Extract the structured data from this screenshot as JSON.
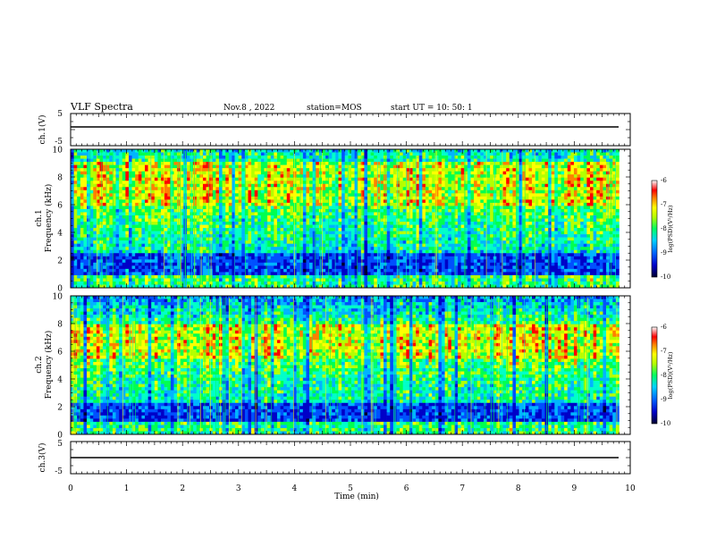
{
  "header": {
    "title": "VLF Spectra",
    "date": "Nov.8  , 2022",
    "station": "station=MOS",
    "start": "start  UT  =   10: 50: 1"
  },
  "chart_data": [
    {
      "type": "line",
      "name": "ch1",
      "ylabel": "ch.1(V)",
      "yticks": [
        "5",
        "-5"
      ],
      "ylim": [
        -5,
        5
      ],
      "xlim": [
        0,
        10
      ],
      "series_level": 0
    },
    {
      "type": "heatmap",
      "name": "ch1-spectrogram",
      "ylabel_top": "ch.1",
      "ylabel": "Frequency (kHz)",
      "ylim": [
        0,
        10
      ],
      "yticks": [
        "0",
        "2",
        "4",
        "6",
        "8",
        "10"
      ],
      "xlim": [
        0,
        10
      ],
      "colorbar": {
        "label": "log(PSD)(V²/Hz)",
        "range": [
          -10,
          -6
        ],
        "ticks": [
          "-6",
          "-7",
          "-8",
          "-9",
          "-10"
        ]
      },
      "intense_band_khz": [
        6.0,
        9.0
      ],
      "low_band_khz": [
        0.0,
        1.0
      ],
      "dark_gap_khz": [
        1.0,
        2.5
      ]
    },
    {
      "type": "heatmap",
      "name": "ch2-spectrogram",
      "ylabel_top": "ch.2",
      "ylabel": "Frequency (kHz)",
      "ylim": [
        0,
        10
      ],
      "yticks": [
        "0",
        "2",
        "4",
        "6",
        "8",
        "10"
      ],
      "xlim": [
        0,
        10
      ],
      "colorbar": {
        "label": "log(PSD)(V²/Hz)",
        "range": [
          -10,
          -6
        ],
        "ticks": [
          "-6",
          "-7",
          "-8",
          "-9",
          "-10"
        ]
      },
      "intense_band_khz": [
        5.5,
        8.0
      ],
      "low_band_khz": [
        0.0,
        1.0
      ],
      "dark_gap_khz": [
        1.0,
        2.3
      ]
    },
    {
      "type": "line",
      "name": "ch3",
      "ylabel": "ch.3(V)",
      "yticks": [
        "5",
        "-5"
      ],
      "ylim": [
        -5,
        5
      ],
      "xlim": [
        0,
        10
      ],
      "series_level": 0
    }
  ],
  "xaxis": {
    "label": "Time  (min)",
    "ticks": [
      "0",
      "1",
      "2",
      "3",
      "4",
      "5",
      "6",
      "7",
      "8",
      "9",
      "10"
    ],
    "range": [
      0,
      10
    ],
    "data_end_min": 9.8
  },
  "colors": {
    "palette": [
      "#000030",
      "#0000c8",
      "#0050ff",
      "#00b4ff",
      "#00ffc8",
      "#00ff50",
      "#b4ff00",
      "#ffff00",
      "#ff8000",
      "#ff0000",
      "#ffffff"
    ]
  }
}
